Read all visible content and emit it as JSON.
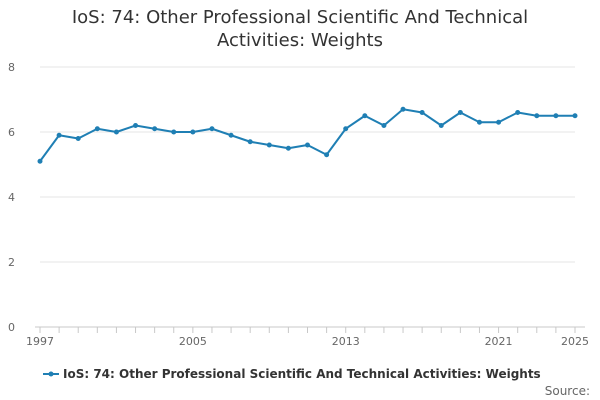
{
  "chart_data": {
    "type": "line",
    "title": "IoS: 74: Other Professional Scientific And Technical Activities: Weights",
    "xlabel": "",
    "ylabel": "",
    "xlim": [
      1997,
      2025
    ],
    "ylim": [
      0,
      8
    ],
    "x_ticks": [
      1997,
      2005,
      2013,
      2021,
      2025
    ],
    "y_ticks": [
      0,
      2,
      4,
      6,
      8
    ],
    "grid": true,
    "legend_position": "bottom",
    "source_label": "Source:",
    "series": [
      {
        "name": "IoS: 74: Other Professional Scientific And Technical Activities: Weights",
        "color": "#1f7fb4",
        "x": [
          1997,
          1998,
          1999,
          2000,
          2001,
          2002,
          2003,
          2004,
          2005,
          2006,
          2007,
          2008,
          2009,
          2010,
          2011,
          2012,
          2013,
          2014,
          2015,
          2016,
          2017,
          2018,
          2019,
          2020,
          2021,
          2022,
          2023,
          2024,
          2025
        ],
        "values": [
          5.1,
          5.9,
          5.8,
          6.1,
          6.0,
          6.2,
          6.1,
          6.0,
          6.0,
          6.1,
          5.9,
          5.7,
          5.6,
          5.5,
          5.6,
          5.3,
          6.1,
          6.5,
          6.2,
          6.7,
          6.6,
          6.2,
          6.6,
          6.3,
          6.3,
          6.6,
          6.5,
          6.5,
          6.5
        ]
      }
    ]
  }
}
